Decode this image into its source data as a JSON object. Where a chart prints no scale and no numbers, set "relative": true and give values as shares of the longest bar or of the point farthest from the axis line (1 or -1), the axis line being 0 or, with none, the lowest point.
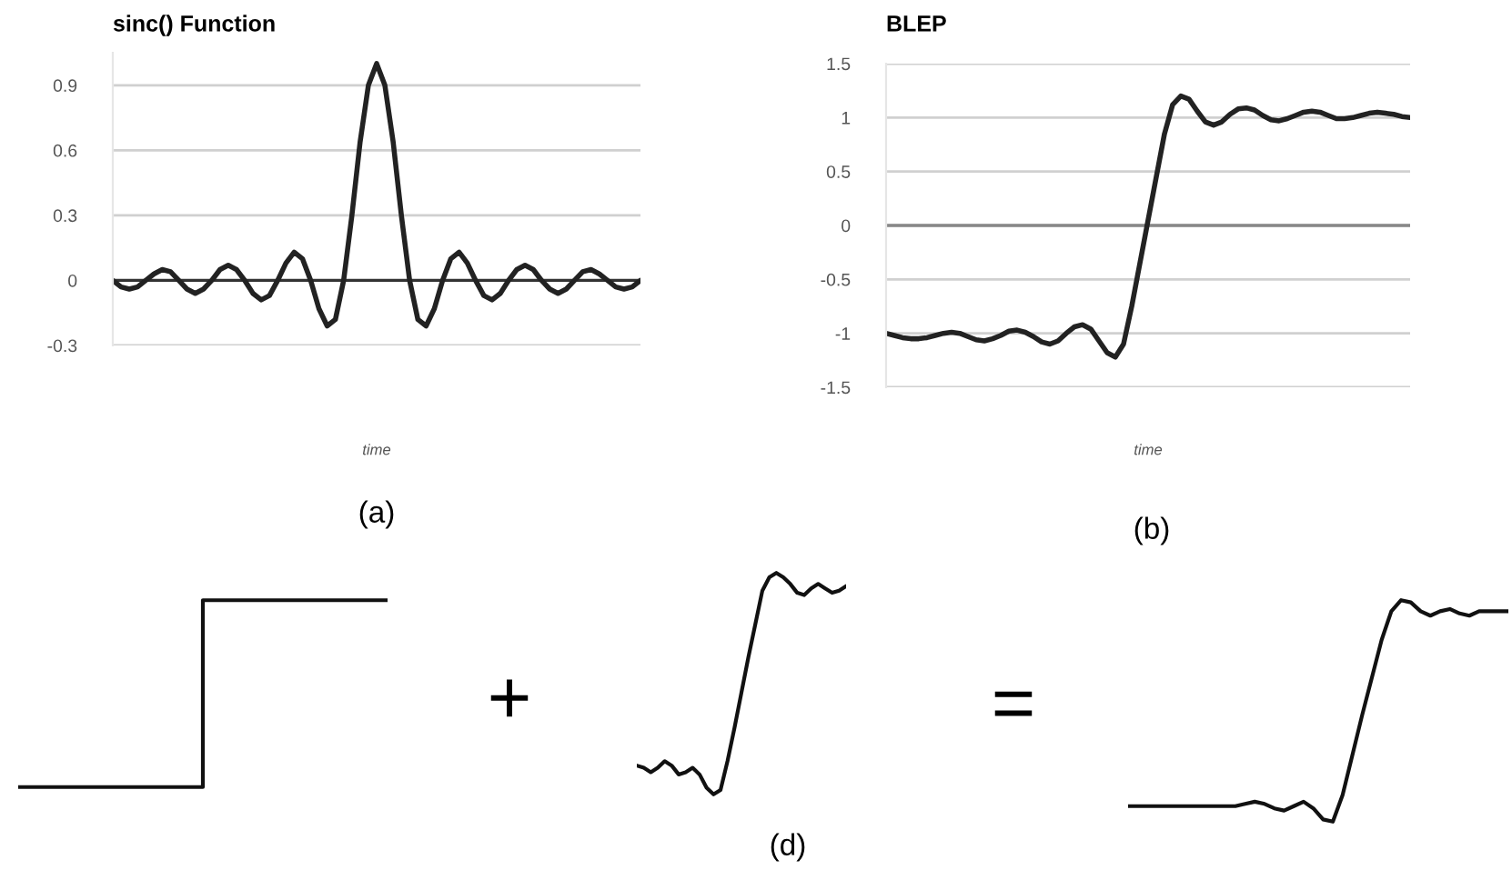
{
  "chart_data": [
    {
      "type": "line",
      "title": "sinc() Function",
      "xlabel": "time",
      "annotations": [
        "(a)"
      ],
      "categories": [
        null,
        null,
        null,
        null,
        null,
        null,
        null,
        null,
        null,
        null,
        null,
        null,
        null,
        null,
        null,
        null,
        null,
        null,
        null,
        null,
        null,
        null,
        null,
        null,
        null,
        null,
        null,
        null,
        null,
        null,
        null,
        null,
        null,
        null,
        null,
        null,
        null,
        null,
        null,
        null,
        null,
        null,
        null,
        null,
        null,
        null,
        null,
        null,
        null,
        null,
        null,
        null,
        null,
        null,
        null,
        null,
        null,
        null,
        null,
        null,
        null,
        null,
        null,
        null,
        null
      ],
      "series": [
        {
          "color": "#222222",
          "values": [
            0,
            -0.03,
            -0.04,
            -0.03,
            0,
            0.03,
            0.05,
            0.04,
            0,
            -0.04,
            -0.06,
            -0.04,
            0,
            0.05,
            0.07,
            0.05,
            0,
            -0.06,
            -0.09,
            -0.07,
            0,
            0.08,
            0.13,
            0.1,
            0,
            -0.13,
            -0.21,
            -0.18,
            0,
            0.3,
            0.64,
            0.9,
            1,
            0.9,
            0.64,
            0.3,
            0,
            -0.18,
            -0.21,
            -0.13,
            0,
            0.1,
            0.13,
            0.08,
            0,
            -0.07,
            -0.09,
            -0.06,
            0,
            0.05,
            0.07,
            0.05,
            0,
            -0.04,
            -0.06,
            -0.04,
            0,
            0.04,
            0.05,
            0.03,
            0,
            -0.03,
            -0.04,
            -0.03,
            0
          ]
        }
      ],
      "ylim": [
        -0.3,
        1.05
      ],
      "yticks": [
        -0.3,
        0,
        0.3,
        0.6,
        0.9
      ],
      "grid": "y",
      "tick_labels": "y",
      "ref_lines": [
        {
          "axis": "y",
          "value": 0,
          "color": "#333333"
        }
      ]
    },
    {
      "type": "line",
      "title": "BLEP",
      "xlabel": "time",
      "annotations": [
        "(b)"
      ],
      "categories": [
        null,
        null,
        null,
        null,
        null,
        null,
        null,
        null,
        null,
        null,
        null,
        null,
        null,
        null,
        null,
        null,
        null,
        null,
        null,
        null,
        null,
        null,
        null,
        null,
        null,
        null,
        null,
        null,
        null,
        null,
        null,
        null,
        null,
        null,
        null,
        null,
        null,
        null,
        null,
        null,
        null,
        null,
        null,
        null,
        null,
        null,
        null,
        null,
        null,
        null,
        null,
        null,
        null,
        null,
        null,
        null,
        null,
        null,
        null,
        null,
        null,
        null,
        null,
        null,
        null
      ],
      "series": [
        {
          "color": "#222222",
          "values": [
            -1.0,
            -1.02,
            -1.04,
            -1.05,
            -1.05,
            -1.04,
            -1.02,
            -1.0,
            -0.99,
            -1.0,
            -1.03,
            -1.06,
            -1.07,
            -1.05,
            -1.02,
            -0.98,
            -0.97,
            -0.99,
            -1.03,
            -1.08,
            -1.1,
            -1.07,
            -1.0,
            -0.94,
            -0.92,
            -0.96,
            -1.07,
            -1.18,
            -1.22,
            -1.1,
            -0.75,
            -0.35,
            0.05,
            0.45,
            0.85,
            1.12,
            1.2,
            1.17,
            1.06,
            0.96,
            0.93,
            0.96,
            1.03,
            1.08,
            1.09,
            1.07,
            1.02,
            0.98,
            0.97,
            0.99,
            1.02,
            1.05,
            1.06,
            1.05,
            1.02,
            0.99,
            0.99,
            1.0,
            1.02,
            1.04,
            1.05,
            1.04,
            1.03,
            1.01,
            1.0
          ]
        }
      ],
      "ylim": [
        -1.5,
        1.5
      ],
      "yticks": [
        -1.5,
        -1,
        -0.5,
        0,
        0.5,
        1,
        1.5
      ],
      "grid": "y",
      "tick_labels": "y",
      "ref_lines": [
        {
          "axis": "y",
          "value": 0,
          "color": "#888888"
        }
      ]
    },
    {
      "type": "step",
      "relative": true,
      "tick_labels": false,
      "annotations": [
        "+"
      ],
      "categories": [
        null,
        null,
        null
      ],
      "series": [
        {
          "color": "#111111",
          "values": [
            0,
            1,
            1
          ]
        }
      ]
    },
    {
      "type": "line",
      "relative": true,
      "tick_labels": false,
      "annotations": [
        "=",
        "(d)"
      ],
      "categories": [
        null,
        null,
        null,
        null,
        null,
        null,
        null,
        null,
        null,
        null,
        null,
        null,
        null,
        null,
        null,
        null,
        null,
        null,
        null,
        null,
        null,
        null,
        null,
        null,
        null,
        null,
        null,
        null,
        null,
        null,
        null
      ],
      "series": [
        {
          "color": "#111111",
          "values": [
            0.13,
            0.12,
            0.1,
            0.12,
            0.15,
            0.13,
            0.09,
            0.1,
            0.12,
            0.09,
            0.03,
            0.0,
            0.02,
            0.15,
            0.3,
            0.46,
            0.62,
            0.77,
            0.92,
            0.98,
            1.0,
            0.98,
            0.95,
            0.91,
            0.9,
            0.93,
            0.95,
            0.93,
            0.91,
            0.92,
            0.94
          ]
        }
      ]
    },
    {
      "type": "line",
      "relative": true,
      "tick_labels": false,
      "categories": [
        null,
        null,
        null,
        null,
        null,
        null,
        null,
        null,
        null,
        null,
        null,
        null,
        null,
        null,
        null,
        null,
        null,
        null,
        null,
        null,
        null,
        null,
        null,
        null,
        null,
        null,
        null,
        null,
        null,
        null,
        null,
        null,
        null,
        null,
        null,
        null,
        null,
        null,
        null,
        null
      ],
      "series": [
        {
          "color": "#111111",
          "values": [
            0.07,
            0.07,
            0.07,
            0.07,
            0.07,
            0.07,
            0.07,
            0.07,
            0.07,
            0.07,
            0.07,
            0.07,
            0.08,
            0.09,
            0.08,
            0.06,
            0.05,
            0.07,
            0.09,
            0.06,
            0.01,
            0.0,
            0.12,
            0.3,
            0.48,
            0.65,
            0.82,
            0.95,
            1.0,
            0.99,
            0.95,
            0.93,
            0.95,
            0.96,
            0.94,
            0.93,
            0.95,
            0.95,
            0.95,
            0.95
          ]
        }
      ]
    }
  ]
}
